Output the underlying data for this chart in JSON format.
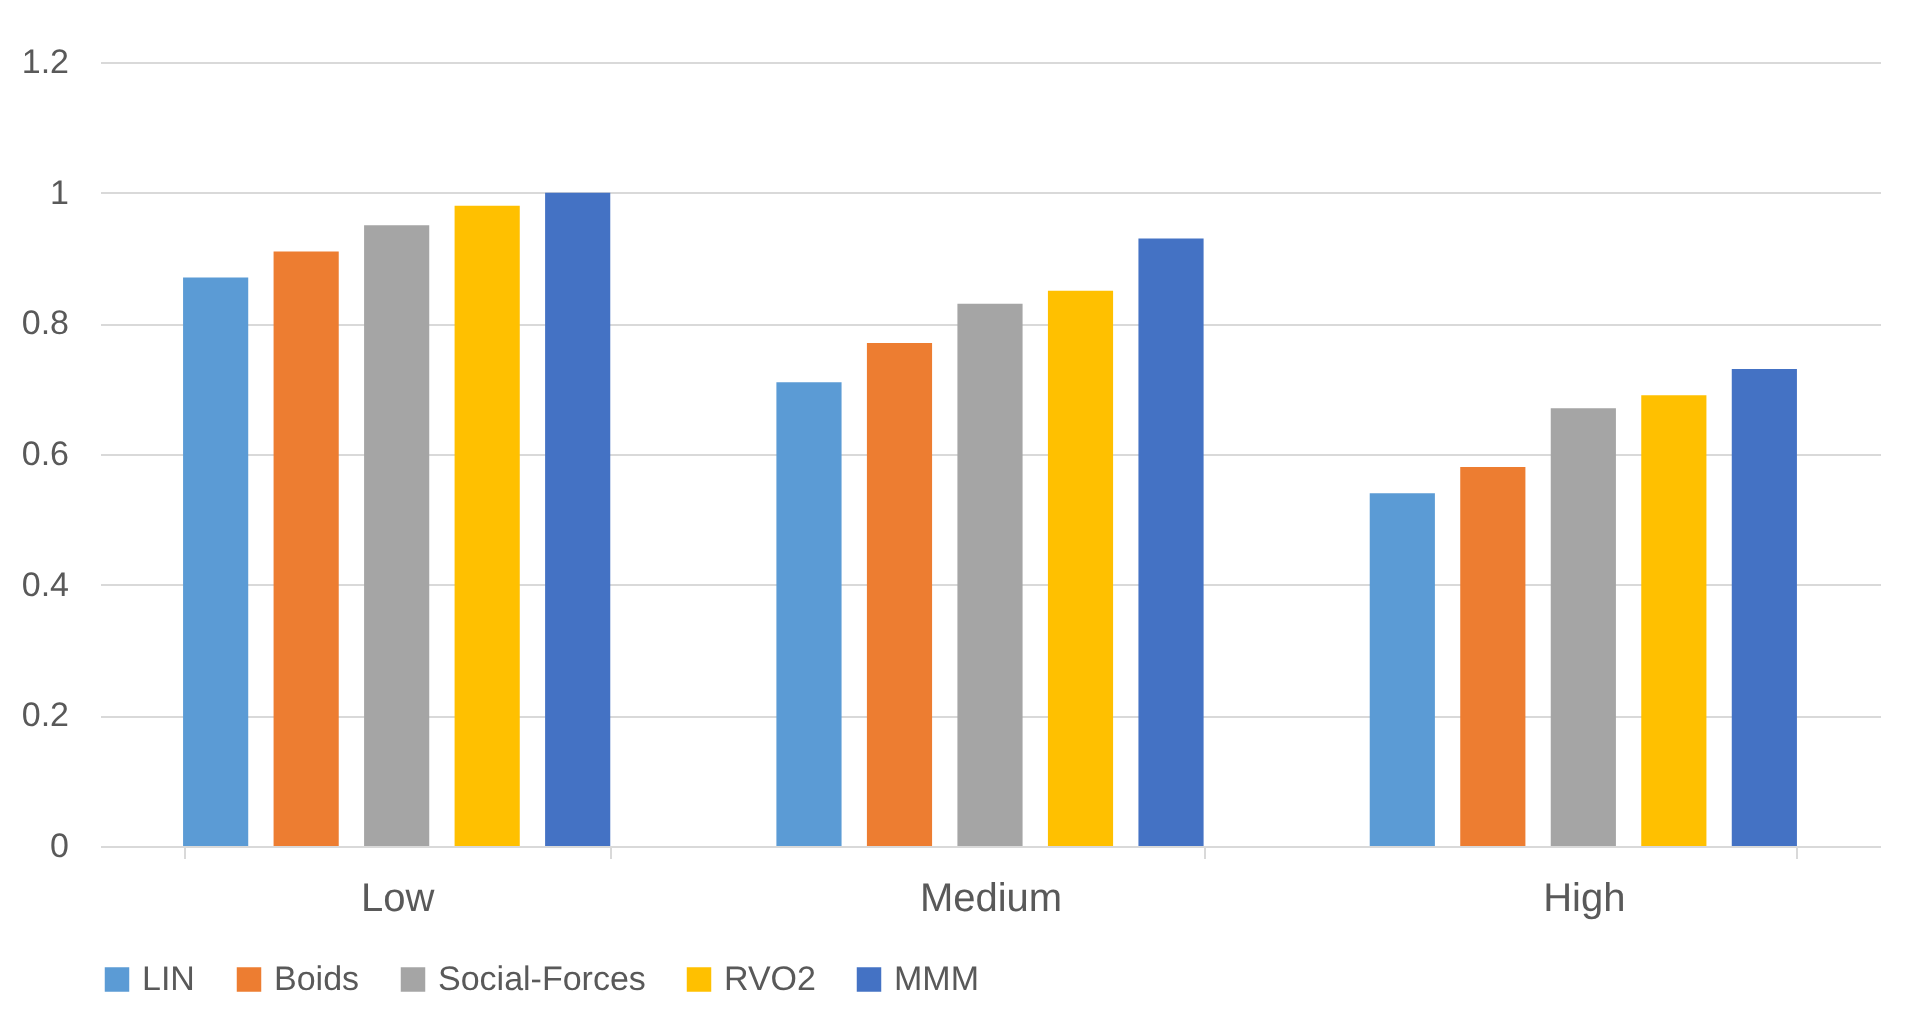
{
  "chart_data": {
    "type": "bar",
    "categories": [
      "Low",
      "Medium",
      "High"
    ],
    "series": [
      {
        "name": "LIN",
        "color": "#5b9bd5",
        "values": [
          0.87,
          0.71,
          0.54
        ]
      },
      {
        "name": "Boids",
        "color": "#ed7d31",
        "values": [
          0.91,
          0.77,
          0.58
        ]
      },
      {
        "name": "Social-Forces",
        "color": "#a5a5a5",
        "values": [
          0.95,
          0.83,
          0.67
        ]
      },
      {
        "name": "RVO2",
        "color": "#ffc000",
        "values": [
          0.98,
          0.85,
          0.69
        ]
      },
      {
        "name": "MMM",
        "color": "#4472c4",
        "values": [
          1.0,
          0.93,
          0.73
        ]
      }
    ],
    "ylim": [
      0,
      1.2
    ],
    "yticks": [
      {
        "value": 0,
        "label": "0"
      },
      0.2,
      0.4,
      0.6,
      0.8,
      {
        "value": 1,
        "label": "1"
      },
      1.2
    ],
    "grid": "y",
    "legend": "bottom"
  }
}
